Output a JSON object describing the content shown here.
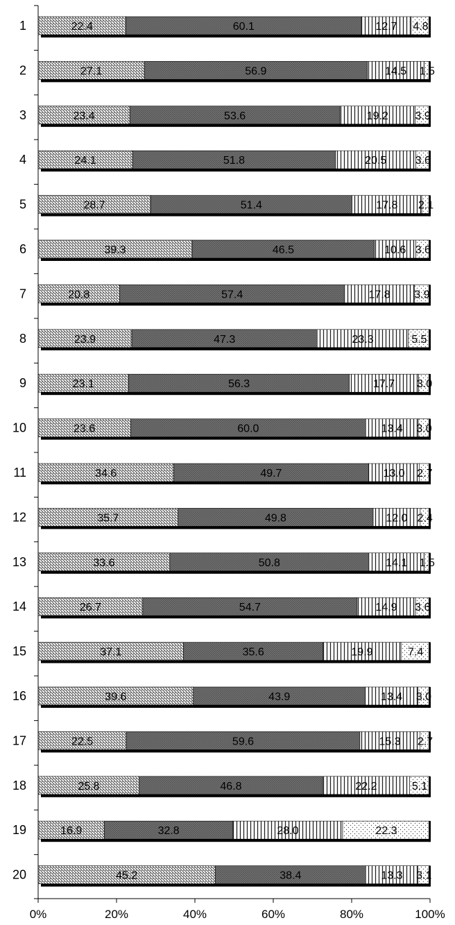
{
  "chart_data": {
    "type": "bar",
    "orientation": "horizontal",
    "stacked": "percent",
    "categories": [
      "1",
      "2",
      "3",
      "4",
      "5",
      "6",
      "7",
      "8",
      "9",
      "10",
      "11",
      "12",
      "13",
      "14",
      "15",
      "16",
      "17",
      "18",
      "19",
      "20"
    ],
    "series": [
      {
        "values": [
          22.4,
          27.1,
          23.4,
          24.1,
          28.7,
          39.3,
          20.8,
          23.9,
          23.1,
          23.6,
          34.6,
          35.7,
          33.6,
          26.7,
          37.1,
          39.6,
          22.5,
          25.8,
          16.9,
          45.2
        ],
        "pattern": "diagonal-hatch"
      },
      {
        "values": [
          60.1,
          56.9,
          53.6,
          51.8,
          51.4,
          46.5,
          57.4,
          47.3,
          56.3,
          60.0,
          49.7,
          49.8,
          50.8,
          54.7,
          35.6,
          43.9,
          59.6,
          46.8,
          32.8,
          38.4
        ],
        "pattern": "dense-crosshatch"
      },
      {
        "values": [
          12.7,
          14.5,
          19.2,
          20.5,
          17.8,
          10.6,
          17.8,
          23.3,
          17.7,
          13.4,
          13.0,
          12.0,
          14.1,
          14.9,
          19.9,
          13.4,
          15.3,
          22.2,
          28.0,
          13.3
        ],
        "pattern": "vertical-lines"
      },
      {
        "values": [
          4.8,
          1.5,
          3.9,
          3.6,
          2.1,
          3.6,
          3.9,
          5.5,
          3.0,
          3.0,
          2.7,
          2.4,
          1.5,
          3.6,
          7.4,
          3.0,
          2.7,
          5.1,
          22.3,
          3.1
        ],
        "pattern": "dots"
      }
    ],
    "value_labels": [
      [
        "22.4",
        "60.1",
        "12.7",
        "4.8"
      ],
      [
        "27.1",
        "56.9",
        "14.5",
        "1.5"
      ],
      [
        "23.4",
        "53.6",
        "19.2",
        "3.9"
      ],
      [
        "24.1",
        "51.8",
        "20.5",
        "3.6"
      ],
      [
        "28.7",
        "51.4",
        "17.8",
        "2.1"
      ],
      [
        "39.3",
        "46.5",
        "10.6",
        "3.6"
      ],
      [
        "20.8",
        "57.4",
        "17.8",
        "3.9"
      ],
      [
        "23.9",
        "47.3",
        "23.3",
        "5.5"
      ],
      [
        "23.1",
        "56.3",
        "17.7",
        "3.0"
      ],
      [
        "23.6",
        "60.0",
        "13.4",
        "3.0"
      ],
      [
        "34.6",
        "49.7",
        "13.0",
        "2.7"
      ],
      [
        "35.7",
        "49.8",
        "12.0",
        "2.4"
      ],
      [
        "33.6",
        "50.8",
        "14.1",
        "1.5"
      ],
      [
        "26.7",
        "54.7",
        "14.9",
        "3.6"
      ],
      [
        "37.1",
        "35.6",
        "19.9",
        "7.4"
      ],
      [
        "39.6",
        "43.9",
        "13.4",
        "3.0"
      ],
      [
        "22.5",
        "59.6",
        "15.3",
        "2.7"
      ],
      [
        "25.8",
        "46.8",
        "22.2",
        "5.1"
      ],
      [
        "16.9",
        "32.8",
        "28.0",
        "22.3"
      ],
      [
        "45.2",
        "38.4",
        "13.3",
        "3.1"
      ]
    ],
    "x_ticks": [
      "0%",
      "20%",
      "40%",
      "60%",
      "80%",
      "100%"
    ],
    "xlim": [
      0,
      100
    ],
    "title": "",
    "xlabel": "",
    "ylabel": "",
    "legend": "none",
    "grid": false
  }
}
